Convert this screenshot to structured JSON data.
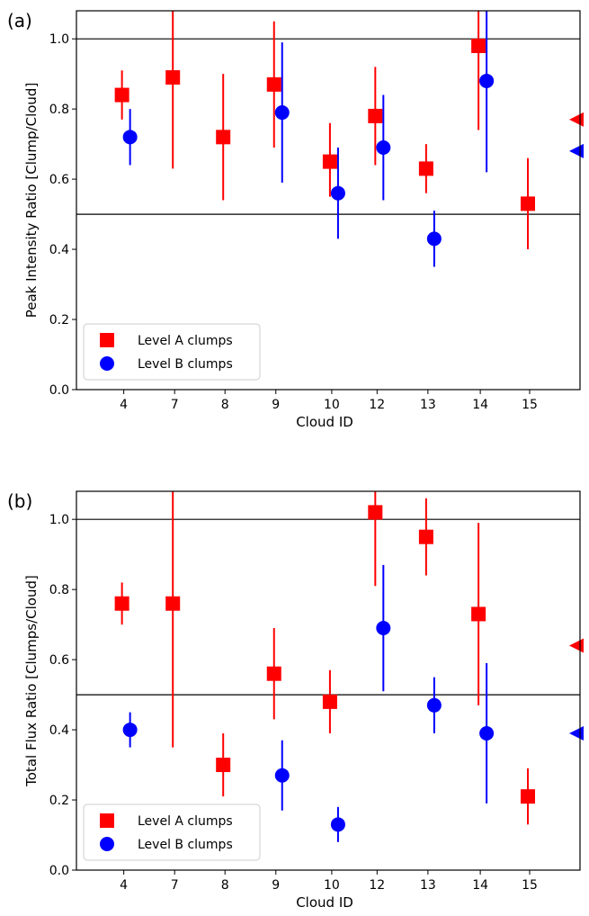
{
  "chart_data": [
    {
      "type": "scatter",
      "panel_label": "(a)",
      "xlabel": "Cloud ID",
      "ylabel": "Peak Intensity Ratio [Clump/Cloud]",
      "categories": [
        "4",
        "7",
        "8",
        "9",
        "10",
        "12",
        "13",
        "14",
        "15"
      ],
      "ylim": [
        0.0,
        1.08
      ],
      "yticks": [
        "0.0",
        "0.2",
        "0.4",
        "0.6",
        "0.8",
        "1.0"
      ],
      "grid": false,
      "legend": "lower-left",
      "reference_lines": [
        1.0,
        0.5
      ],
      "series": [
        {
          "name": "Level A clumps",
          "marker": "square",
          "color": "#ff0000",
          "points": [
            {
              "x": "4",
              "y": 0.84,
              "lo": 0.77,
              "hi": 0.91
            },
            {
              "x": "7",
              "y": 0.89,
              "lo": 0.63,
              "hi": 1.08
            },
            {
              "x": "8",
              "y": 0.72,
              "lo": 0.54,
              "hi": 0.9
            },
            {
              "x": "9",
              "y": 0.87,
              "lo": 0.69,
              "hi": 1.05
            },
            {
              "x": "10",
              "y": 0.65,
              "lo": 0.55,
              "hi": 0.76
            },
            {
              "x": "12",
              "y": 0.78,
              "lo": 0.64,
              "hi": 0.92
            },
            {
              "x": "13",
              "y": 0.63,
              "lo": 0.56,
              "hi": 0.7
            },
            {
              "x": "14",
              "y": 0.98,
              "lo": 0.74,
              "hi": 1.08
            },
            {
              "x": "15",
              "y": 0.53,
              "lo": 0.4,
              "hi": 0.66
            }
          ],
          "edge_marker_y": 0.77
        },
        {
          "name": "Level B clumps",
          "marker": "circle",
          "color": "#0000ff",
          "points": [
            {
              "x": "4",
              "y": 0.72,
              "lo": 0.64,
              "hi": 0.8
            },
            {
              "x": "9",
              "y": 0.79,
              "lo": 0.59,
              "hi": 0.99
            },
            {
              "x": "10",
              "y": 0.56,
              "lo": 0.43,
              "hi": 0.69
            },
            {
              "x": "12",
              "y": 0.69,
              "lo": 0.54,
              "hi": 0.84
            },
            {
              "x": "13",
              "y": 0.43,
              "lo": 0.35,
              "hi": 0.51
            },
            {
              "x": "14",
              "y": 0.88,
              "lo": 0.62,
              "hi": 1.08
            }
          ],
          "edge_marker_y": 0.68
        }
      ]
    },
    {
      "type": "scatter",
      "panel_label": "(b)",
      "xlabel": "Cloud ID",
      "ylabel": "Total Flux Ratio [Clumps/Cloud]",
      "categories": [
        "4",
        "7",
        "8",
        "9",
        "10",
        "12",
        "13",
        "14",
        "15"
      ],
      "ylim": [
        0.0,
        1.08
      ],
      "yticks": [
        "0.0",
        "0.2",
        "0.4",
        "0.6",
        "0.8",
        "1.0"
      ],
      "grid": false,
      "legend": "lower-left",
      "reference_lines": [
        1.0,
        0.5
      ],
      "series": [
        {
          "name": "Level A clumps",
          "marker": "square",
          "color": "#ff0000",
          "points": [
            {
              "x": "4",
              "y": 0.76,
              "lo": 0.7,
              "hi": 0.82
            },
            {
              "x": "7",
              "y": 0.76,
              "lo": 0.35,
              "hi": 1.08
            },
            {
              "x": "8",
              "y": 0.3,
              "lo": 0.21,
              "hi": 0.39
            },
            {
              "x": "9",
              "y": 0.56,
              "lo": 0.43,
              "hi": 0.69
            },
            {
              "x": "10",
              "y": 0.48,
              "lo": 0.39,
              "hi": 0.57
            },
            {
              "x": "12",
              "y": 1.02,
              "lo": 0.81,
              "hi": 1.08
            },
            {
              "x": "13",
              "y": 0.95,
              "lo": 0.84,
              "hi": 1.06
            },
            {
              "x": "14",
              "y": 0.73,
              "lo": 0.47,
              "hi": 0.99
            },
            {
              "x": "15",
              "y": 0.21,
              "lo": 0.13,
              "hi": 0.29
            }
          ],
          "edge_marker_y": 0.64
        },
        {
          "name": "Level B clumps",
          "marker": "circle",
          "color": "#0000ff",
          "points": [
            {
              "x": "4",
              "y": 0.4,
              "lo": 0.35,
              "hi": 0.45
            },
            {
              "x": "9",
              "y": 0.27,
              "lo": 0.17,
              "hi": 0.37
            },
            {
              "x": "10",
              "y": 0.13,
              "lo": 0.08,
              "hi": 0.18
            },
            {
              "x": "12",
              "y": 0.69,
              "lo": 0.51,
              "hi": 0.87
            },
            {
              "x": "13",
              "y": 0.47,
              "lo": 0.39,
              "hi": 0.55
            },
            {
              "x": "14",
              "y": 0.39,
              "lo": 0.19,
              "hi": 0.59
            }
          ],
          "edge_marker_y": 0.39
        }
      ]
    }
  ]
}
